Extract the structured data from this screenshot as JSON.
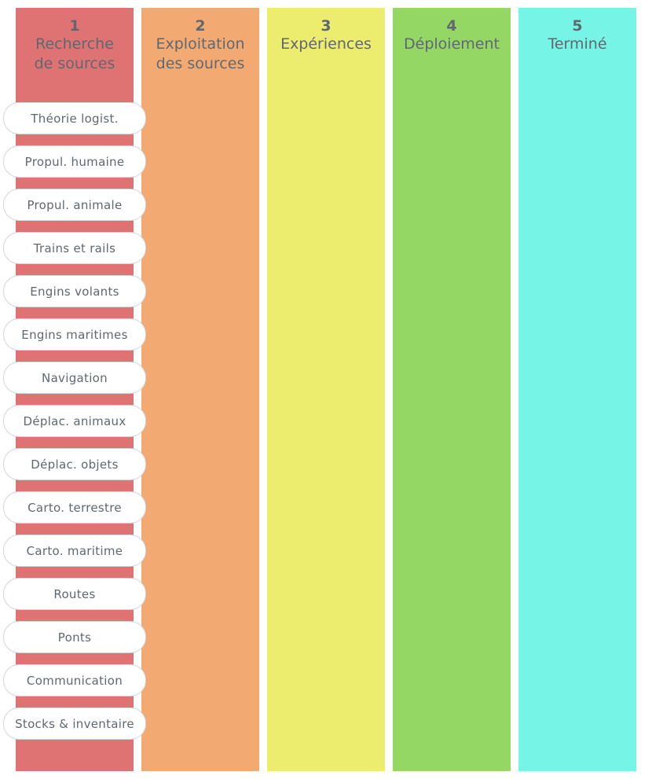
{
  "columns": [
    {
      "number": "1",
      "title": "Recherche\nde sources",
      "color": "#df7272"
    },
    {
      "number": "2",
      "title": "Exploitation\ndes sources",
      "color": "#f3aa72"
    },
    {
      "number": "3",
      "title": "Expériences",
      "color": "#ecec6e"
    },
    {
      "number": "4",
      "title": "Déploiement",
      "color": "#95d765"
    },
    {
      "number": "5",
      "title": "Terminé",
      "color": "#76f5e7"
    }
  ],
  "cards": [
    "Théorie logist.",
    "Propul. humaine",
    "Propul. animale",
    "Trains et rails",
    "Engins volants",
    "Engins maritimes",
    "Navigation",
    "Déplac. animaux",
    "Déplac. objets",
    "Carto. terrestre",
    "Carto. maritime",
    "Routes",
    "Ponts",
    "Communication",
    "Stocks & inventaire"
  ]
}
